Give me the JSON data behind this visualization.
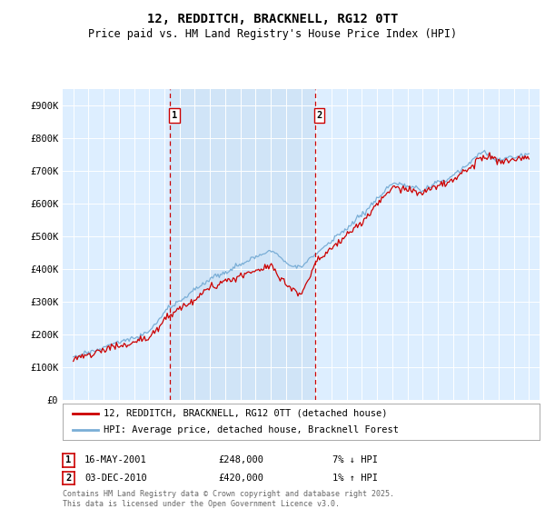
{
  "title": "12, REDDITCH, BRACKNELL, RG12 0TT",
  "subtitle": "Price paid vs. HM Land Registry's House Price Index (HPI)",
  "ylim": [
    0,
    950000
  ],
  "yticks": [
    0,
    100000,
    200000,
    300000,
    400000,
    500000,
    600000,
    700000,
    800000,
    900000
  ],
  "ytick_labels": [
    "£0",
    "£100K",
    "£200K",
    "£300K",
    "£400K",
    "£500K",
    "£600K",
    "£700K",
    "£800K",
    "£900K"
  ],
  "background_color": "#ddeeff",
  "shaded_color": "#d0e4f7",
  "red_line_color": "#cc0000",
  "blue_line_color": "#7aaed6",
  "marker1_x": 2001.37,
  "marker2_x": 2010.92,
  "legend_label_red": "12, REDDITCH, BRACKNELL, RG12 0TT (detached house)",
  "legend_label_blue": "HPI: Average price, detached house, Bracknell Forest",
  "annotation1_date": "16-MAY-2001",
  "annotation1_price": "£248,000",
  "annotation1_hpi": "7% ↓ HPI",
  "annotation2_date": "03-DEC-2010",
  "annotation2_price": "£420,000",
  "annotation2_hpi": "1% ↑ HPI",
  "footer": "Contains HM Land Registry data © Crown copyright and database right 2025.\nThis data is licensed under the Open Government Licence v3.0.",
  "title_fontsize": 10,
  "subtitle_fontsize": 8.5,
  "tick_fontsize": 7.5
}
